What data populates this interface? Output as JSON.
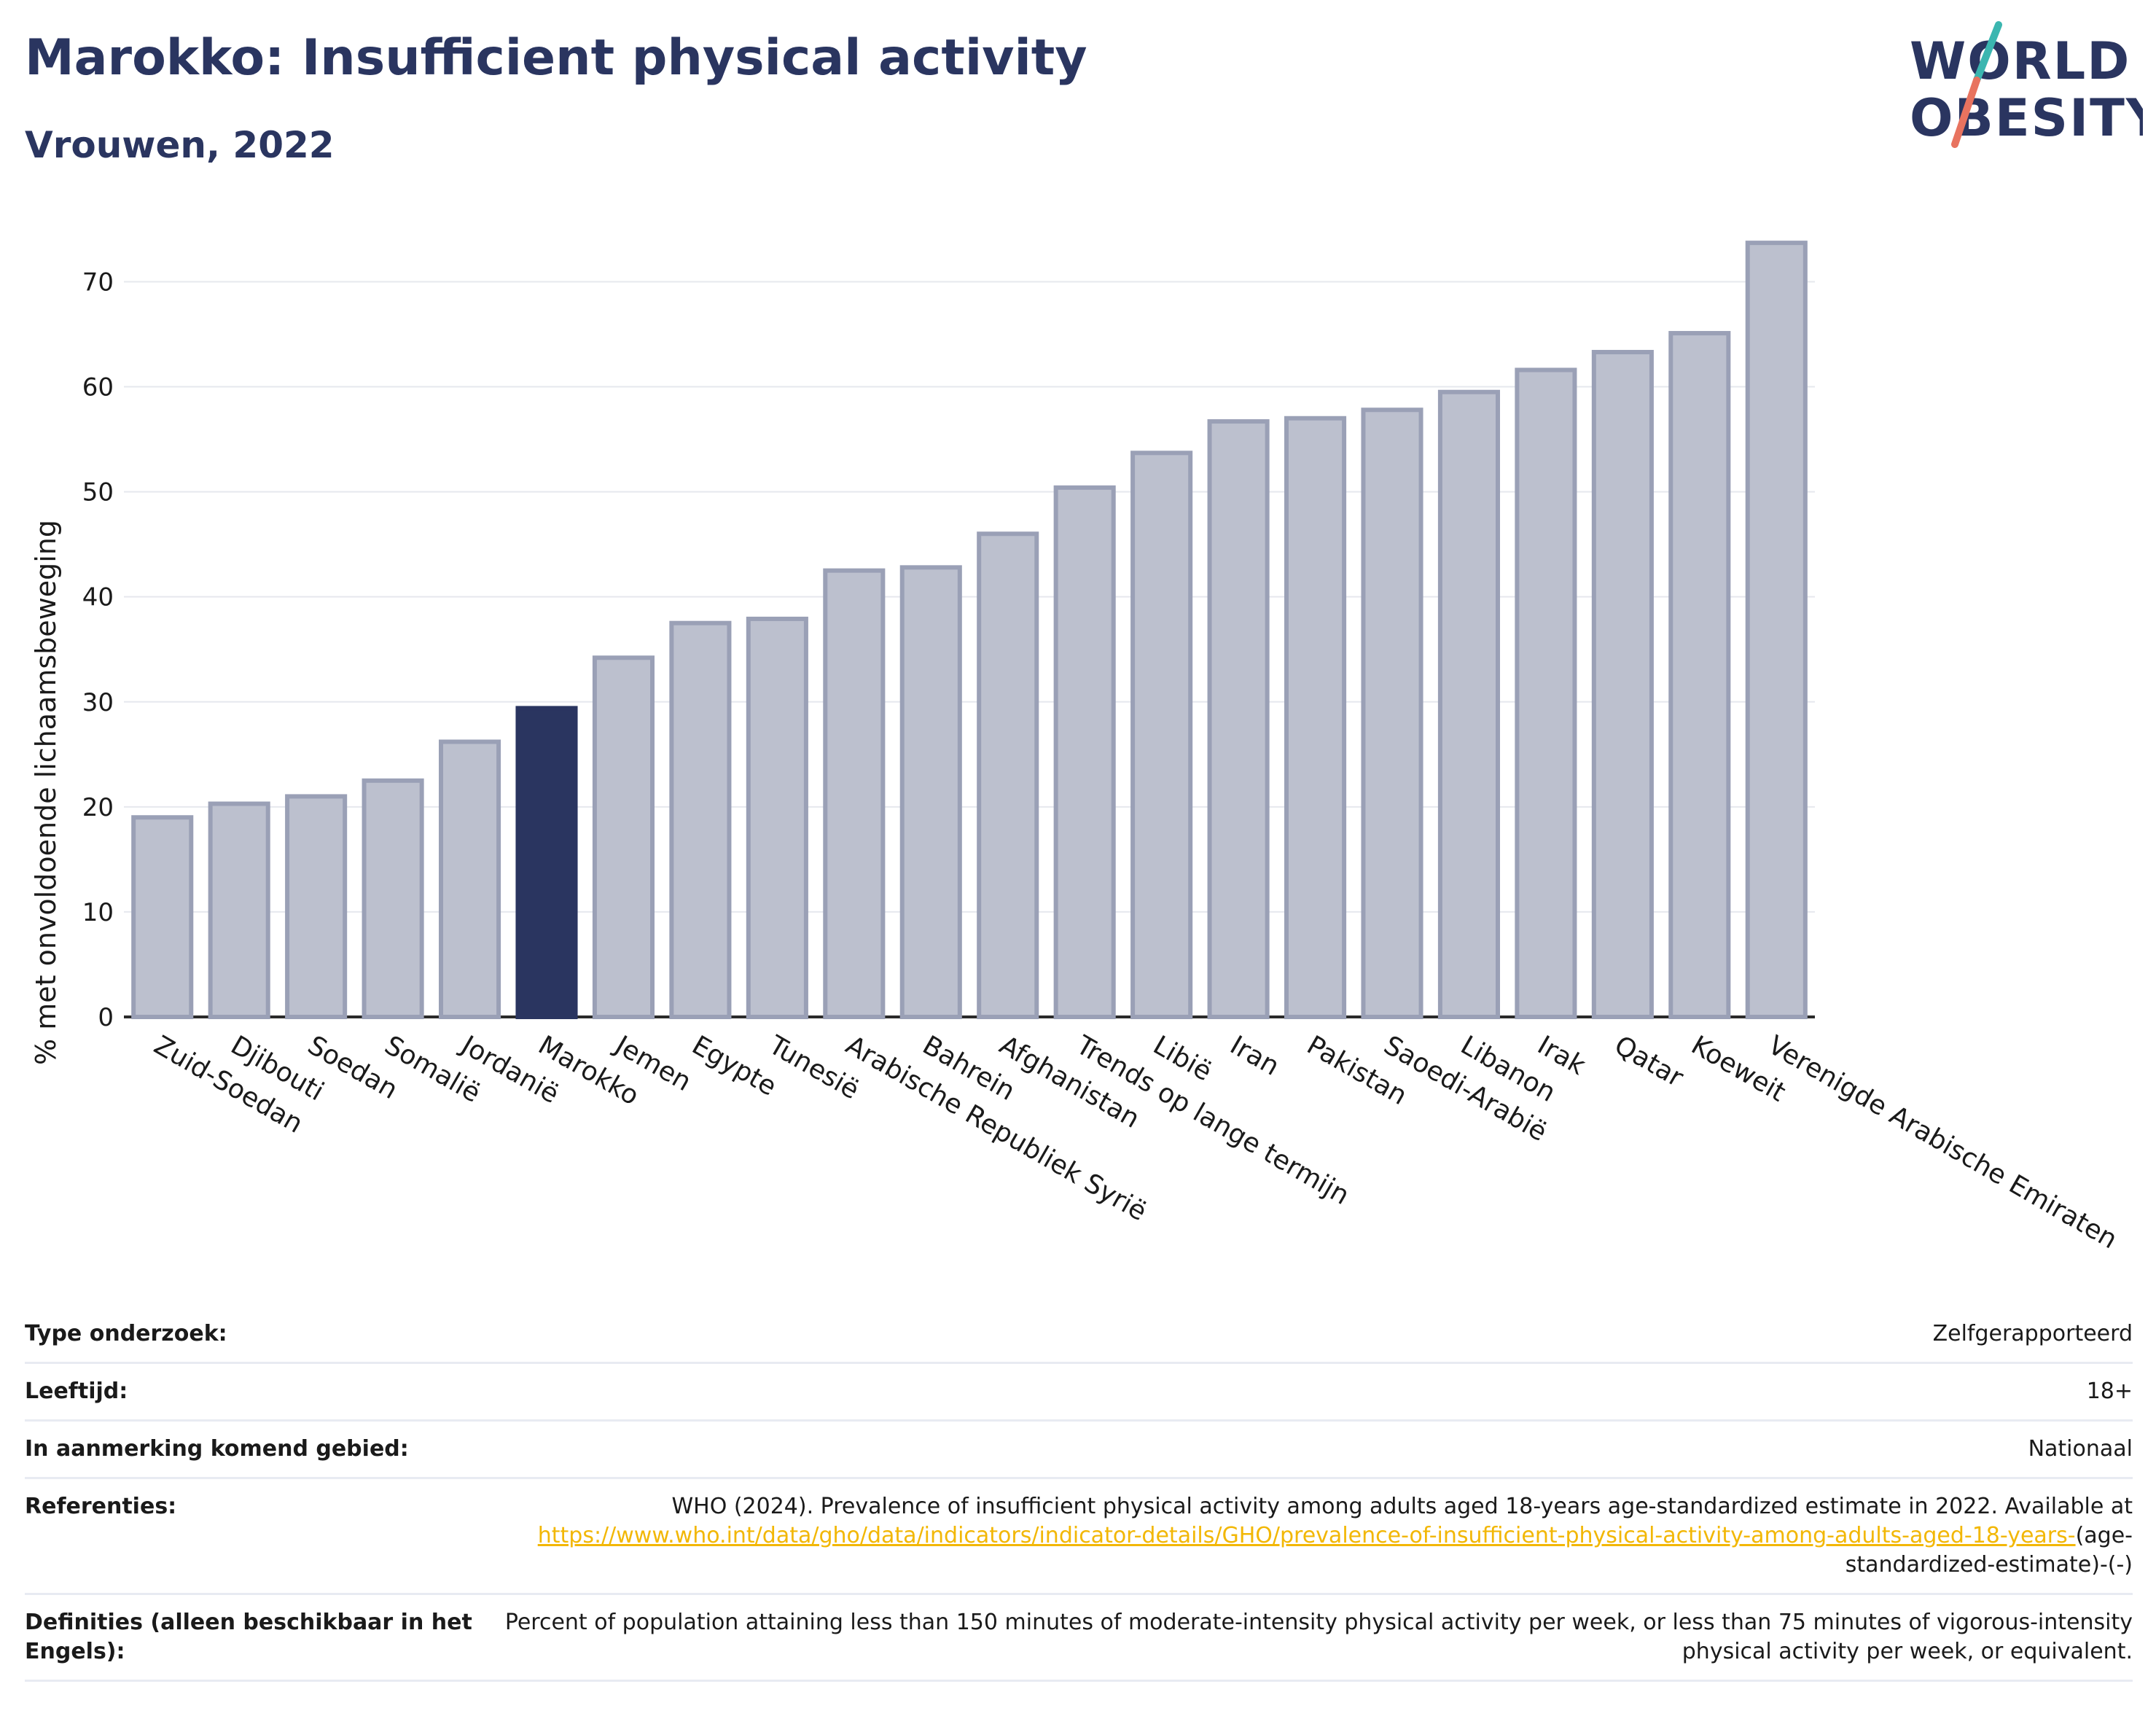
{
  "header": {
    "title": "Marokko: Insufficient physical activity",
    "subtitle": "Vrouwen, 2022"
  },
  "logo": {
    "line1": "WORLD",
    "line2": "OBESITY"
  },
  "colors": {
    "bar": "#bcc0ce",
    "bar_border": "#9aa0b6",
    "highlight": "#2a3560",
    "title": "#2a3560",
    "link": "#f2b705",
    "logo_teal": "#3bb6b0",
    "logo_coral": "#e8735f"
  },
  "chart_data": {
    "type": "bar",
    "ylabel": "% met onvoldoende lichaamsbeweging",
    "ylim": [
      0,
      76
    ],
    "yticks": [
      "0",
      "10",
      "20",
      "30",
      "40",
      "50",
      "60",
      "70"
    ],
    "grid": true,
    "highlight_category": "Marokko",
    "categories": [
      "Zuid-Soedan",
      "Djibouti",
      "Soedan",
      "Somalië",
      "Jordanië",
      "Marokko",
      "Jemen",
      "Egypte",
      "Tunesië",
      "Arabische Republiek Syrië",
      "Bahrein",
      "Afghanistan",
      "Trends op lange termijn",
      "Libië",
      "Iran",
      "Pakistan",
      "Saoedi-Arabië",
      "Libanon",
      "Irak",
      "Qatar",
      "Koeweit",
      "Verenigde Arabische Emiraten"
    ],
    "values": [
      19.0,
      20.3,
      21.0,
      22.5,
      26.2,
      29.4,
      34.2,
      37.5,
      37.9,
      42.5,
      42.8,
      46.0,
      50.4,
      53.7,
      56.7,
      57.0,
      57.8,
      59.5,
      61.6,
      63.3,
      65.1,
      73.7
    ]
  },
  "info": {
    "rows": [
      {
        "label": "Type onderzoek:",
        "value": "Zelfgerapporteerd"
      },
      {
        "label": "Leeftijd:",
        "value": "18+"
      },
      {
        "label": "In aanmerking komend gebied:",
        "value": "Nationaal"
      }
    ],
    "references": {
      "label": "Referenties:",
      "text": "WHO (2024). Prevalence of insufficient physical activity among adults aged 18-years age-standardized estimate in 2022. Available at",
      "link": "https://www.who.int/data/gho/data/indicators/indicator-details/GHO/prevalence-of-insufficient-physical-activity-among-adults-aged-18-years-",
      "suffix": "(age-standardized-estimate)-(-)"
    },
    "definitions": {
      "label": "Definities (alleen beschikbaar in het Engels):",
      "value": "Percent of population attaining less than 150 minutes of moderate-intensity physical activity per week, or less than 75 minutes of vigorous-intensity physical activity per week, or equivalent."
    }
  }
}
